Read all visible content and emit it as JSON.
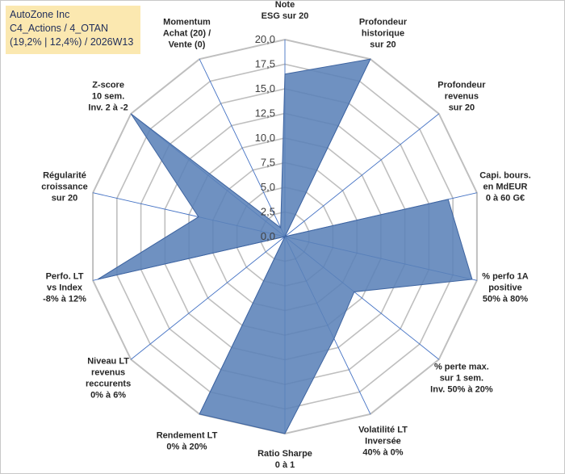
{
  "title_box": {
    "line1": "AutoZone Inc",
    "line2": "C4_Actions / 4_OTAN",
    "line3": "(19,2% | 12,4%) / 2026W13"
  },
  "colors": {
    "grid": "#bfbfbf",
    "spoke": "#4472c4",
    "fill": "#5b82b8",
    "stroke": "#3e64a0"
  },
  "chart_data": {
    "type": "radar",
    "rlim": [
      0,
      20
    ],
    "rticks": [
      "0,0",
      "2,5",
      "5,0",
      "7,5",
      "10,0",
      "12,5",
      "15,0",
      "17,5",
      "20,0"
    ],
    "axes": [
      {
        "label": [
          "Note",
          "ESG sur 20"
        ],
        "value": 16.5
      },
      {
        "label": [
          "Profondeur",
          "historique",
          "sur 20"
        ],
        "value": 20.0
      },
      {
        "label": [
          "Profondeur",
          "revenus",
          "sur 20"
        ],
        "value": 0.0
      },
      {
        "label": [
          "Capi. bours.",
          "en MdEUR",
          "0 à 60 G€"
        ],
        "value": 17.0
      },
      {
        "label": [
          "% perfo 1A",
          "positive",
          "50% à 80%"
        ],
        "value": 19.5
      },
      {
        "label": [
          "% perte max.",
          "sur 1 sem.",
          "Inv. 50% à 20%"
        ],
        "value": 9.0
      },
      {
        "label": [
          "Volatilité LT",
          "Inversée",
          "40% à 0%"
        ],
        "value": 11.5
      },
      {
        "label": [
          "Ratio Sharpe",
          "0 à 1"
        ],
        "value": 20.0
      },
      {
        "label": [
          "Rendement LT",
          "0% à 20%"
        ],
        "value": 20.0
      },
      {
        "label": [
          "Niveau LT",
          "revenus",
          "reccurents",
          "0% à 6%"
        ],
        "value": 0.0
      },
      {
        "label": [
          "Perfo. LT",
          "vs Index",
          "-8% à 12%"
        ],
        "value": 19.5
      },
      {
        "label": [
          "Régularité",
          "croissance",
          "sur 20"
        ],
        "value": 9.0
      },
      {
        "label": [
          "Z-score",
          "10 sem.",
          "Inv. 2 à -2"
        ],
        "value": 20.0
      },
      {
        "label": [
          "Momentum",
          "Achat (20) /",
          "Vente (0)"
        ],
        "value": 1.0
      }
    ]
  }
}
